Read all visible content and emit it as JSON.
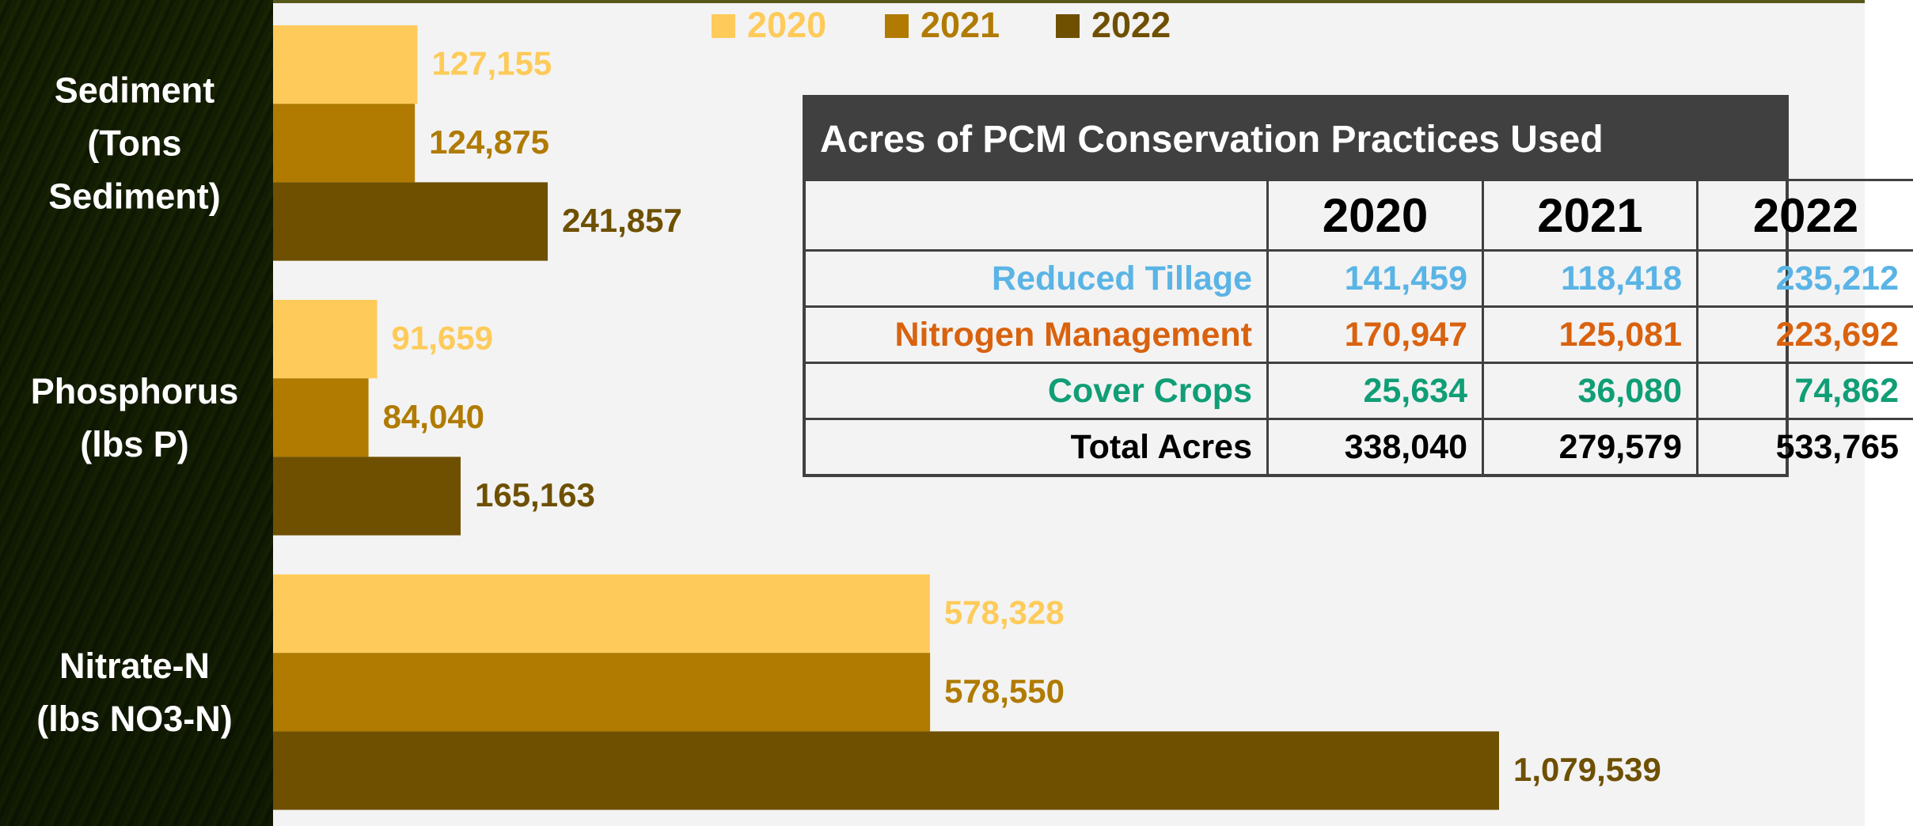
{
  "chart_data": {
    "type": "bar",
    "orientation": "horizontal",
    "categories": [
      "Sediment\n(Tons\nSediment)",
      "Phosphorus\n(lbs P)",
      "Nitrate-N\n(lbs NO3-N)"
    ],
    "series": [
      {
        "name": "2020",
        "color": "#fecb5a",
        "values": [
          127155,
          91659,
          578328
        ],
        "value_labels": [
          "127,155",
          "91,659",
          "578,328"
        ]
      },
      {
        "name": "2021",
        "color": "#b07b00",
        "values": [
          124875,
          84040,
          578550
        ],
        "value_labels": [
          "124,875",
          "84,040",
          "578,550"
        ]
      },
      {
        "name": "2022",
        "color": "#6e5000",
        "values": [
          241857,
          165163,
          1079539
        ],
        "value_labels": [
          "241,857",
          "165,163",
          "1,079,539"
        ]
      }
    ],
    "legend": "top"
  },
  "table": {
    "title": "Acres of PCM Conservation Practices Used",
    "header": [
      "",
      "2020",
      "2021",
      "2022"
    ],
    "rows": [
      {
        "color": "#5ab4e5",
        "cells": [
          "Reduced Tillage",
          "141,459",
          "118,418",
          "235,212"
        ]
      },
      {
        "color": "#d9620f",
        "cells": [
          "Nitrogen Management",
          "170,947",
          "125,081",
          "223,692"
        ]
      },
      {
        "color": "#109e76",
        "cells": [
          "Cover Crops",
          "25,634",
          "36,080",
          "74,862"
        ]
      },
      {
        "color": "#000000",
        "cells": [
          "Total Acres",
          "338,040",
          "279,579",
          "533,765"
        ]
      }
    ]
  }
}
